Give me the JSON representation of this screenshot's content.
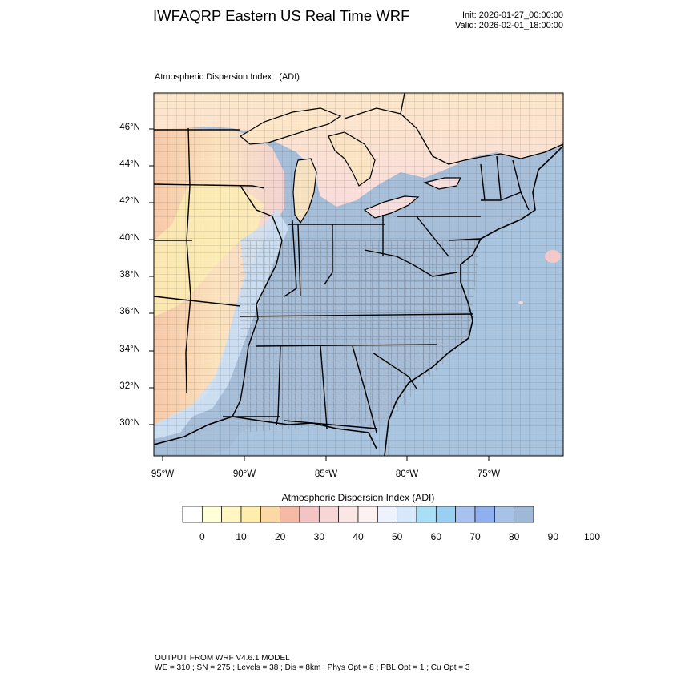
{
  "header": {
    "title": "IWFAQRP Eastern US Real Time WRF",
    "init": "Init: 2026-01-27_00:00:00",
    "valid": "Valid: 2026-02-01_18:00:00"
  },
  "map": {
    "title": "Atmospheric Dispersion Index   (ADI)",
    "lat_labels": [
      "46°N",
      "44°N",
      "42°N",
      "40°N",
      "38°N",
      "36°N",
      "34°N",
      "32°N",
      "30°N"
    ],
    "lon_labels": [
      "95°W",
      "90°W",
      "85°W",
      "80°W",
      "75°W"
    ],
    "colors": {
      "ocean": "#a9c4de",
      "low_adi": "#fdf0c8",
      "mid_adi": "#f5d3c6",
      "high_adi": "#a9c4de",
      "border": "#000000"
    }
  },
  "colorbar": {
    "title": "Atmospheric Dispersion Index  (ADI)",
    "labels": [
      "0",
      "10",
      "20",
      "30",
      "40",
      "50",
      "60",
      "70",
      "80",
      "90",
      "100"
    ],
    "colors": [
      "#ffffff",
      "#ffffd8",
      "#fff6c2",
      "#ffeeab",
      "#fcd8a4",
      "#f6b9a4",
      "#f4c4c4",
      "#f8d6d6",
      "#fbe6e6",
      "#fdf2f2",
      "#eef2ff",
      "#d8e8fb",
      "#a9def7",
      "#98cff2",
      "#a8c2f0",
      "#8eb0ee",
      "#a6c2e6",
      "#a0b8d8"
    ]
  },
  "footer": {
    "line1": "OUTPUT FROM WRF V4.6.1 MODEL",
    "line2": "WE = 310 ; SN = 275 ; Levels = 38 ; Dis = 8km ; Phys Opt = 8 ; PBL Opt = 1 ; Cu Opt = 3"
  }
}
